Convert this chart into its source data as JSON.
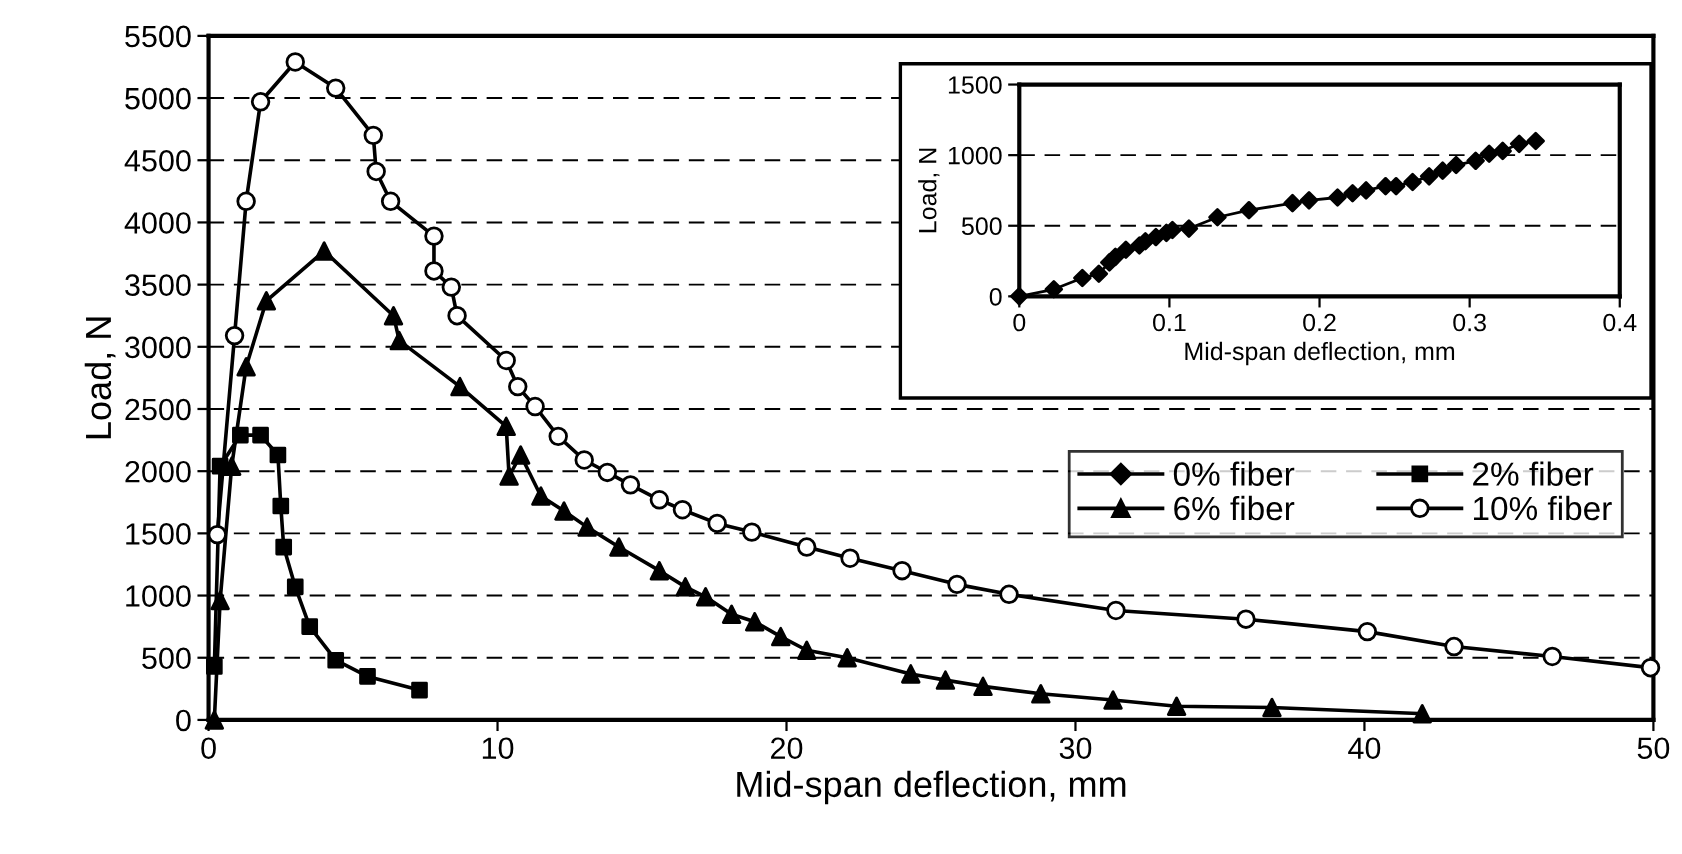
{
  "chart_data": [
    {
      "type": "line",
      "xlabel": "Mid-span deflection, mm",
      "ylabel": "Load, N",
      "xlim": [
        0,
        50
      ],
      "ylim": [
        0,
        5500
      ],
      "xticks": [
        0,
        10,
        20,
        30,
        40,
        50
      ],
      "yticks": [
        0,
        500,
        1000,
        1500,
        2000,
        2500,
        3000,
        3500,
        4000,
        4500,
        5000,
        5500
      ],
      "grid": "y",
      "legend": "right",
      "line_style": "solid",
      "series": [
        {
          "name": "0% fiber",
          "color": "#000000",
          "marker": "diamond"
        },
        {
          "name": "2% fiber",
          "color": "#000000",
          "marker": "square",
          "x": [
            0.2,
            0.4,
            1.1,
            1.8,
            2.4,
            2.5,
            2.6,
            3.0,
            3.5,
            4.4,
            5.5,
            7.3
          ],
          "values": [
            430,
            2040,
            2290,
            2290,
            2130,
            1720,
            1390,
            1070,
            750,
            480,
            350,
            240
          ]
        },
        {
          "name": "6% fiber",
          "color": "#000000",
          "marker": "triangle",
          "x": [
            0.2,
            0.4,
            0.8,
            1.3,
            2.0,
            4.0,
            6.4,
            6.6,
            8.7,
            10.3,
            10.4,
            10.8,
            11.5,
            12.3,
            13.1,
            14.2,
            15.6,
            16.5,
            17.2,
            18.1,
            18.9,
            19.8,
            20.7,
            22.1,
            24.3,
            25.5,
            26.8,
            28.8,
            31.3,
            33.5,
            36.8,
            42.0
          ],
          "values": [
            0,
            960,
            2040,
            2840,
            3370,
            3770,
            3250,
            3050,
            2680,
            2360,
            1960,
            2130,
            1800,
            1680,
            1550,
            1390,
            1200,
            1070,
            990,
            850,
            790,
            670,
            560,
            500,
            370,
            320,
            270,
            210,
            160,
            110,
            100,
            50
          ]
        },
        {
          "name": "10% fiber",
          "color": "#000000",
          "marker": "circle",
          "x": [
            0.3,
            0.9,
            1.3,
            1.8,
            3.0,
            4.4,
            5.7,
            5.8,
            6.3,
            7.8,
            7.8,
            8.4,
            8.6,
            10.3,
            10.7,
            11.3,
            12.1,
            13.0,
            13.8,
            14.6,
            15.6,
            16.4,
            17.6,
            18.8,
            20.7,
            22.2,
            24.0,
            25.9,
            27.7,
            31.4,
            35.9,
            40.1,
            43.1,
            46.5,
            49.9
          ],
          "values": [
            1490,
            3090,
            4170,
            4970,
            5290,
            5080,
            4700,
            4410,
            4170,
            3890,
            3610,
            3480,
            3250,
            2890,
            2680,
            2520,
            2280,
            2090,
            1990,
            1890,
            1770,
            1690,
            1580,
            1510,
            1390,
            1300,
            1200,
            1090,
            1010,
            880,
            810,
            710,
            590,
            510,
            420
          ]
        }
      ]
    },
    {
      "type": "line",
      "xlabel": "Mid-span deflection, mm",
      "ylabel": "Load, N",
      "xlim": [
        0,
        0.4
      ],
      "ylim": [
        0,
        1500
      ],
      "xticks": [
        0,
        0.1,
        0.2,
        0.3,
        0.4
      ],
      "yticks": [
        0,
        500,
        1000,
        1500
      ],
      "grid": "y",
      "line_style": "solid",
      "series": [
        {
          "color": "#000000",
          "marker": "diamond",
          "x": [
            0,
            0.023,
            0.042,
            0.053,
            0.06,
            0.064,
            0.071,
            0.08,
            0.084,
            0.091,
            0.098,
            0.102,
            0.113,
            0.132,
            0.153,
            0.182,
            0.193,
            0.212,
            0.222,
            0.231,
            0.244,
            0.251,
            0.262,
            0.273,
            0.282,
            0.291,
            0.304,
            0.313,
            0.322,
            0.333,
            0.344
          ],
          "values": [
            0,
            50,
            130,
            160,
            240,
            280,
            330,
            360,
            390,
            420,
            450,
            470,
            480,
            560,
            610,
            660,
            680,
            700,
            730,
            750,
            780,
            780,
            810,
            850,
            890,
            930,
            960,
            1010,
            1030,
            1080,
            1100
          ]
        }
      ]
    }
  ]
}
